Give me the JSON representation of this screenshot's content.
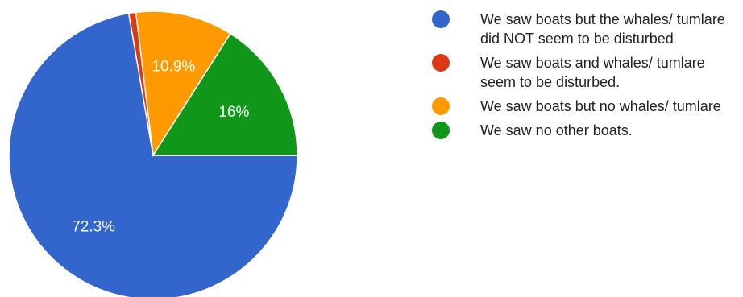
{
  "chart_data": {
    "type": "pie",
    "categories": [
      "We saw boats but the whales/ tumlare did NOT seem to be disturbed",
      "We saw boats and whales/ tumlare seem to be disturbed.",
      "We saw boats but no whales/ tumlare",
      "We saw no other boats."
    ],
    "values": [
      72.3,
      0.8,
      10.9,
      16
    ],
    "data_labels": [
      "72.3%",
      "",
      "10.9%",
      "16%"
    ],
    "colors": [
      "#3366cc",
      "#dc3912",
      "#ff9900",
      "#109618"
    ],
    "title": "",
    "legend_position": "right"
  }
}
